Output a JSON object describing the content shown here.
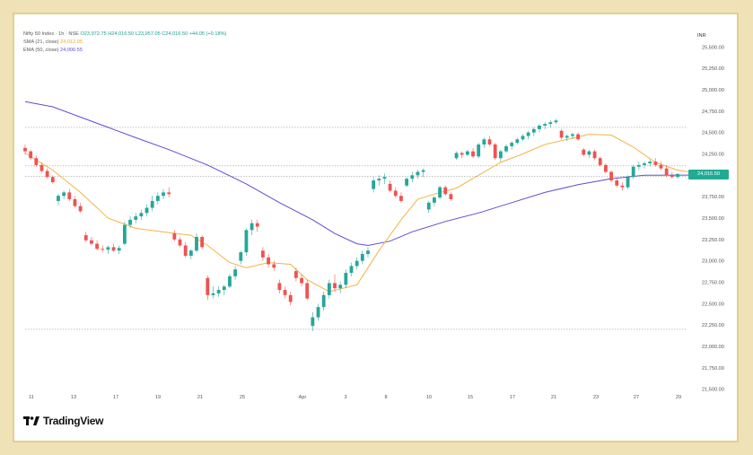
{
  "legend": {
    "symbol": "Nifty 50 Index · 1h · NSE",
    "ohlc": "O23,972.75 H24,016.50 L23,957.05 C24,016.50 +44.05 (+0.18%)",
    "sma_label": "SMA (21, close)",
    "sma_value": "24,012.05",
    "ema_label": "EMA (50, close)",
    "ema_value": "24,000.55"
  },
  "currency": "INR",
  "brand": {
    "name": "TradingView",
    "icon": "tradingview-logo-icon"
  },
  "colors": {
    "up": "#26a69a",
    "down": "#ef5350",
    "sma": "#f5b342",
    "ema": "#5b4fd0",
    "hline": "#9e9e9e",
    "price_tag": "#22ab94",
    "frame": "#e3cf8d",
    "background": "#efe2b6"
  },
  "chart_data": {
    "type": "candlestick",
    "y_ticks": [
      "25,500.00",
      "25,250.00",
      "25,000.00",
      "24,750.00",
      "24,500.00",
      "24,250.00",
      "24,000.00",
      "23,750.00",
      "23,500.00",
      "23,250.00",
      "23,000.00",
      "22,750.00",
      "22,500.00",
      "22,250.00",
      "22,000.00",
      "21,750.00",
      "21,500.00"
    ],
    "ylim": [
      21350,
      25650
    ],
    "x_ticks": [
      "11",
      "13",
      "17",
      "19",
      "21",
      "25",
      "Apr",
      "3",
      "8",
      "10",
      "15",
      "17",
      "21",
      "23",
      "27",
      "29"
    ],
    "last_price_label": "24,016.50",
    "horizontal_lines": [
      24560,
      24110,
      23990,
      22200
    ],
    "ohlc": [
      [
        24320,
        24360,
        24240,
        24280
      ],
      [
        24280,
        24300,
        24180,
        24200
      ],
      [
        24200,
        24230,
        24100,
        24120
      ],
      [
        24120,
        24150,
        24030,
        24050
      ],
      [
        24050,
        24080,
        23960,
        23980
      ],
      [
        23980,
        24000,
        23900,
        23920
      ],
      [
        23700,
        23780,
        23650,
        23760
      ],
      [
        23760,
        23820,
        23720,
        23800
      ],
      [
        23800,
        23840,
        23700,
        23720
      ],
      [
        23720,
        23760,
        23620,
        23640
      ],
      [
        23640,
        23680,
        23560,
        23580
      ],
      [
        23300,
        23340,
        23220,
        23240
      ],
      [
        23240,
        23280,
        23180,
        23200
      ],
      [
        23200,
        23240,
        23120,
        23140
      ],
      [
        23140,
        23180,
        23100,
        23130
      ],
      [
        23130,
        23180,
        23080,
        23160
      ],
      [
        23160,
        23200,
        23100,
        23120
      ],
      [
        23120,
        23180,
        23080,
        23150
      ],
      [
        23200,
        23460,
        23180,
        23420
      ],
      [
        23420,
        23520,
        23380,
        23480
      ],
      [
        23480,
        23560,
        23440,
        23520
      ],
      [
        23520,
        23600,
        23480,
        23560
      ],
      [
        23560,
        23660,
        23520,
        23620
      ],
      [
        23620,
        23760,
        23580,
        23700
      ],
      [
        23700,
        23800,
        23660,
        23760
      ],
      [
        23760,
        23840,
        23720,
        23800
      ],
      [
        23800,
        23860,
        23740,
        23780
      ],
      [
        23320,
        23360,
        23230,
        23250
      ],
      [
        23250,
        23280,
        23160,
        23180
      ],
      [
        23180,
        23220,
        23040,
        23060
      ],
      [
        23060,
        23140,
        23020,
        23120
      ],
      [
        23120,
        23320,
        23100,
        23280
      ],
      [
        23280,
        23300,
        23140,
        23160
      ],
      [
        22800,
        22830,
        22540,
        22600
      ],
      [
        22600,
        22700,
        22560,
        22620
      ],
      [
        22620,
        22700,
        22580,
        22660
      ],
      [
        22660,
        22720,
        22600,
        22700
      ],
      [
        22700,
        22850,
        22680,
        22820
      ],
      [
        22820,
        22940,
        22780,
        22900
      ],
      [
        23000,
        23120,
        22960,
        23100
      ],
      [
        23100,
        23380,
        23060,
        23360
      ],
      [
        23360,
        23480,
        23300,
        23440
      ],
      [
        23440,
        23480,
        23340,
        23400
      ],
      [
        23120,
        23160,
        23000,
        23040
      ],
      [
        23040,
        23080,
        22920,
        22960
      ],
      [
        22960,
        23000,
        22880,
        22920
      ],
      [
        22740,
        22780,
        22620,
        22660
      ],
      [
        22660,
        22700,
        22560,
        22600
      ],
      [
        22600,
        22640,
        22480,
        22520
      ],
      [
        22880,
        22920,
        22760,
        22800
      ],
      [
        22800,
        22840,
        22700,
        22740
      ],
      [
        22740,
        22780,
        22540,
        22560
      ],
      [
        22240,
        22400,
        22180,
        22340
      ],
      [
        22340,
        22500,
        22300,
        22460
      ],
      [
        22460,
        22640,
        22420,
        22600
      ],
      [
        22600,
        22780,
        22560,
        22740
      ],
      [
        22740,
        22840,
        22640,
        22680
      ],
      [
        22680,
        22760,
        22620,
        22720
      ],
      [
        22720,
        22900,
        22680,
        22860
      ],
      [
        22860,
        22980,
        22820,
        22940
      ],
      [
        22940,
        23040,
        22900,
        23000
      ],
      [
        23000,
        23120,
        22960,
        23080
      ],
      [
        23080,
        23160,
        23040,
        23120
      ],
      [
        23840,
        23980,
        23800,
        23940
      ],
      [
        23940,
        24000,
        23880,
        23960
      ],
      [
        23960,
        24020,
        23900,
        23980
      ],
      [
        23900,
        23940,
        23800,
        23820
      ],
      [
        23820,
        23860,
        23740,
        23760
      ],
      [
        23760,
        23800,
        23680,
        23700
      ],
      [
        23880,
        23980,
        23860,
        23960
      ],
      [
        23960,
        24040,
        23920,
        24000
      ],
      [
        24000,
        24060,
        23960,
        24040
      ],
      [
        24040,
        24080,
        23980,
        24060
      ],
      [
        23600,
        23700,
        23560,
        23680
      ],
      [
        23680,
        23760,
        23640,
        23740
      ],
      [
        23740,
        23880,
        23720,
        23860
      ],
      [
        23860,
        23880,
        23760,
        23780
      ],
      [
        23780,
        23800,
        23700,
        23720
      ],
      [
        24200,
        24280,
        24180,
        24260
      ],
      [
        24260,
        24280,
        24200,
        24240
      ],
      [
        24240,
        24300,
        24220,
        24280
      ],
      [
        24280,
        24320,
        24200,
        24220
      ],
      [
        24220,
        24380,
        24200,
        24360
      ],
      [
        24360,
        24440,
        24320,
        24420
      ],
      [
        24420,
        24460,
        24340,
        24360
      ],
      [
        24360,
        24380,
        24180,
        24200
      ],
      [
        24200,
        24300,
        24160,
        24280
      ],
      [
        24280,
        24360,
        24260,
        24340
      ],
      [
        24340,
        24400,
        24300,
        24380
      ],
      [
        24380,
        24440,
        24360,
        24420
      ],
      [
        24420,
        24480,
        24400,
        24460
      ],
      [
        24460,
        24520,
        24420,
        24500
      ],
      [
        24500,
        24560,
        24460,
        24540
      ],
      [
        24540,
        24600,
        24500,
        24580
      ],
      [
        24580,
        24620,
        24540,
        24600
      ],
      [
        24600,
        24640,
        24560,
        24620
      ],
      [
        24620,
        24660,
        24600,
        24640
      ],
      [
        24520,
        24540,
        24420,
        24440
      ],
      [
        24440,
        24480,
        24400,
        24460
      ],
      [
        24460,
        24500,
        24420,
        24480
      ],
      [
        24480,
        24500,
        24400,
        24420
      ],
      [
        24300,
        24320,
        24220,
        24240
      ],
      [
        24240,
        24300,
        24200,
        24280
      ],
      [
        24280,
        24300,
        24180,
        24200
      ],
      [
        24200,
        24220,
        24100,
        24120
      ],
      [
        24120,
        24140,
        24020,
        24040
      ],
      [
        24040,
        24060,
        23920,
        23940
      ],
      [
        23940,
        23980,
        23860,
        23880
      ],
      [
        23880,
        23920,
        23820,
        23860
      ],
      [
        23860,
        24000,
        23840,
        23980
      ],
      [
        23980,
        24120,
        23960,
        24100
      ],
      [
        24100,
        24160,
        24060,
        24120
      ],
      [
        24120,
        24160,
        24080,
        24140
      ],
      [
        24140,
        24180,
        24100,
        24160
      ],
      [
        24160,
        24200,
        24100,
        24120
      ],
      [
        24120,
        24160,
        24060,
        24080
      ],
      [
        24080,
        24120,
        23980,
        24000
      ],
      [
        24000,
        24040,
        23960,
        23980
      ],
      [
        23980,
        24020,
        23957,
        24016
      ]
    ],
    "sma_21": [
      [
        0,
        24260
      ],
      [
        5,
        24060
      ],
      [
        10,
        23800
      ],
      [
        15,
        23500
      ],
      [
        20,
        23380
      ],
      [
        26,
        23330
      ],
      [
        30,
        23300
      ],
      [
        33,
        23180
      ],
      [
        37,
        22980
      ],
      [
        40,
        22920
      ],
      [
        44,
        22980
      ],
      [
        48,
        22960
      ],
      [
        51,
        22780
      ],
      [
        55,
        22640
      ],
      [
        60,
        22720
      ],
      [
        64,
        23120
      ],
      [
        68,
        23480
      ],
      [
        71,
        23720
      ],
      [
        74,
        23780
      ],
      [
        78,
        23850
      ],
      [
        82,
        24000
      ],
      [
        86,
        24150
      ],
      [
        90,
        24250
      ],
      [
        94,
        24360
      ],
      [
        98,
        24420
      ],
      [
        102,
        24480
      ],
      [
        106,
        24470
      ],
      [
        110,
        24330
      ],
      [
        114,
        24150
      ],
      [
        118,
        24060
      ],
      [
        123,
        24012
      ]
    ],
    "ema_50": [
      [
        0,
        24860
      ],
      [
        5,
        24800
      ],
      [
        10,
        24680
      ],
      [
        15,
        24560
      ],
      [
        20,
        24440
      ],
      [
        26,
        24300
      ],
      [
        33,
        24120
      ],
      [
        40,
        23900
      ],
      [
        46,
        23680
      ],
      [
        52,
        23480
      ],
      [
        56,
        23320
      ],
      [
        60,
        23200
      ],
      [
        62,
        23180
      ],
      [
        66,
        23230
      ],
      [
        70,
        23340
      ],
      [
        76,
        23460
      ],
      [
        82,
        23560
      ],
      [
        88,
        23680
      ],
      [
        94,
        23800
      ],
      [
        100,
        23890
      ],
      [
        106,
        23960
      ],
      [
        112,
        24000
      ],
      [
        118,
        24002
      ],
      [
        123,
        24000
      ]
    ]
  }
}
